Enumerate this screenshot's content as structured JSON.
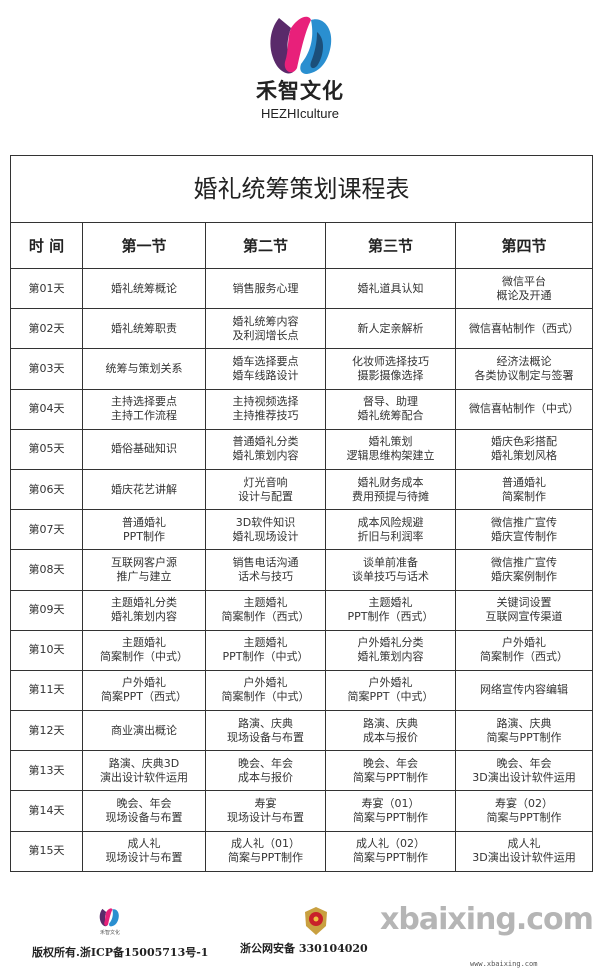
{
  "brand": {
    "name_cn": "禾智文化",
    "name_en": "HEZHIculture",
    "colors": {
      "magenta": "#e8207a",
      "purple": "#5a2a6a",
      "blue": "#2a8fd0"
    }
  },
  "table": {
    "title": "婚礼统筹策划课程表",
    "headers": [
      "时 间",
      "第一节",
      "第二节",
      "第三节",
      "第四节"
    ],
    "rows": [
      {
        "day": "第01天",
        "cells": [
          [
            "婚礼统筹概论"
          ],
          [
            "销售服务心理"
          ],
          [
            "婚礼道具认知"
          ],
          [
            "微信平台",
            "概论及开通"
          ]
        ]
      },
      {
        "day": "第02天",
        "cells": [
          [
            "婚礼统筹职责"
          ],
          [
            "婚礼统筹内容",
            "及利润增长点"
          ],
          [
            "新人定亲解析"
          ],
          [
            "微信喜帖制作（西式）"
          ]
        ]
      },
      {
        "day": "第03天",
        "cells": [
          [
            "统筹与策划关系"
          ],
          [
            "婚车选择要点",
            "婚车线路设计"
          ],
          [
            "化妆师选择技巧",
            "摄影摄像选择"
          ],
          [
            "经济法概论",
            "各类协议制定与签署"
          ]
        ]
      },
      {
        "day": "第04天",
        "cells": [
          [
            "主持选择要点",
            "主持工作流程"
          ],
          [
            "主持视频选择",
            "主持推荐技巧"
          ],
          [
            "督导、助理",
            "婚礼统筹配合"
          ],
          [
            "微信喜帖制作（中式）"
          ]
        ]
      },
      {
        "day": "第05天",
        "cells": [
          [
            "婚俗基础知识"
          ],
          [
            "普通婚礼分类",
            "婚礼策划内容"
          ],
          [
            "婚礼策划",
            "逻辑思维构架建立"
          ],
          [
            "婚庆色彩搭配",
            "婚礼策划风格"
          ]
        ]
      },
      {
        "day": "第06天",
        "cells": [
          [
            "婚庆花艺讲解"
          ],
          [
            "灯光音响",
            "设计与配置"
          ],
          [
            "婚礼财务成本",
            "费用预提与待摊"
          ],
          [
            "普通婚礼",
            "简案制作"
          ]
        ]
      },
      {
        "day": "第07天",
        "cells": [
          [
            "普通婚礼",
            "PPT制作"
          ],
          [
            "3D软件知识",
            "婚礼现场设计"
          ],
          [
            "成本风险规避",
            "折旧与利润率"
          ],
          [
            "微信推广宣传",
            "婚庆宣传制作"
          ]
        ]
      },
      {
        "day": "第08天",
        "cells": [
          [
            "互联网客户源",
            "推广与建立"
          ],
          [
            "销售电话沟通",
            "话术与技巧"
          ],
          [
            "谈单前准备",
            "谈单技巧与话术"
          ],
          [
            "微信推广宣传",
            "婚庆案例制作"
          ]
        ]
      },
      {
        "day": "第09天",
        "cells": [
          [
            "主题婚礼分类",
            "婚礼策划内容"
          ],
          [
            "主题婚礼",
            "简案制作（西式）"
          ],
          [
            "主题婚礼",
            "PPT制作（西式）"
          ],
          [
            "关键词设置",
            "互联网宣传渠道"
          ]
        ]
      },
      {
        "day": "第10天",
        "cells": [
          [
            "主题婚礼",
            "简案制作（中式）"
          ],
          [
            "主题婚礼",
            "PPT制作（中式）"
          ],
          [
            "户外婚礼分类",
            "婚礼策划内容"
          ],
          [
            "户外婚礼",
            "简案制作（西式）"
          ]
        ]
      },
      {
        "day": "第11天",
        "cells": [
          [
            "户外婚礼",
            "简案PPT（西式）"
          ],
          [
            "户外婚礼",
            "简案制作（中式）"
          ],
          [
            "户外婚礼",
            "简案PPT（中式）"
          ],
          [
            "网络宣传内容编辑"
          ]
        ]
      },
      {
        "day": "第12天",
        "cells": [
          [
            "商业演出概论"
          ],
          [
            "路演、庆典",
            "现场设备与布置"
          ],
          [
            "路演、庆典",
            "成本与报价"
          ],
          [
            "路演、庆典",
            "简案与PPT制作"
          ]
        ]
      },
      {
        "day": "第13天",
        "cells": [
          [
            "路演、庆典3D",
            "演出设计软件运用"
          ],
          [
            "晚会、年会",
            "成本与报价"
          ],
          [
            "晚会、年会",
            "简案与PPT制作"
          ],
          [
            "晚会、年会",
            "3D演出设计软件运用"
          ]
        ]
      },
      {
        "day": "第14天",
        "cells": [
          [
            "晚会、年会",
            "现场设备与布置"
          ],
          [
            "寿宴",
            "现场设计与布置"
          ],
          [
            "寿宴（01）",
            "简案与PPT制作"
          ],
          [
            "寿宴（02）",
            "简案与PPT制作"
          ]
        ]
      },
      {
        "day": "第15天",
        "cells": [
          [
            "成人礼",
            "现场设计与布置"
          ],
          [
            "成人礼（01）",
            "简案与PPT制作"
          ],
          [
            "成人礼（02）",
            "简案与PPT制作"
          ],
          [
            "成人礼",
            "3D演出设计软件运用"
          ]
        ]
      }
    ]
  },
  "footer": {
    "logo_text": "禾智文化",
    "copyright": "版权所有.浙ICP备15005713号-1",
    "beian": "浙公网安备 330104020",
    "watermark": "xbaixing.com",
    "watermark_url": "www.xbaixing.com"
  }
}
